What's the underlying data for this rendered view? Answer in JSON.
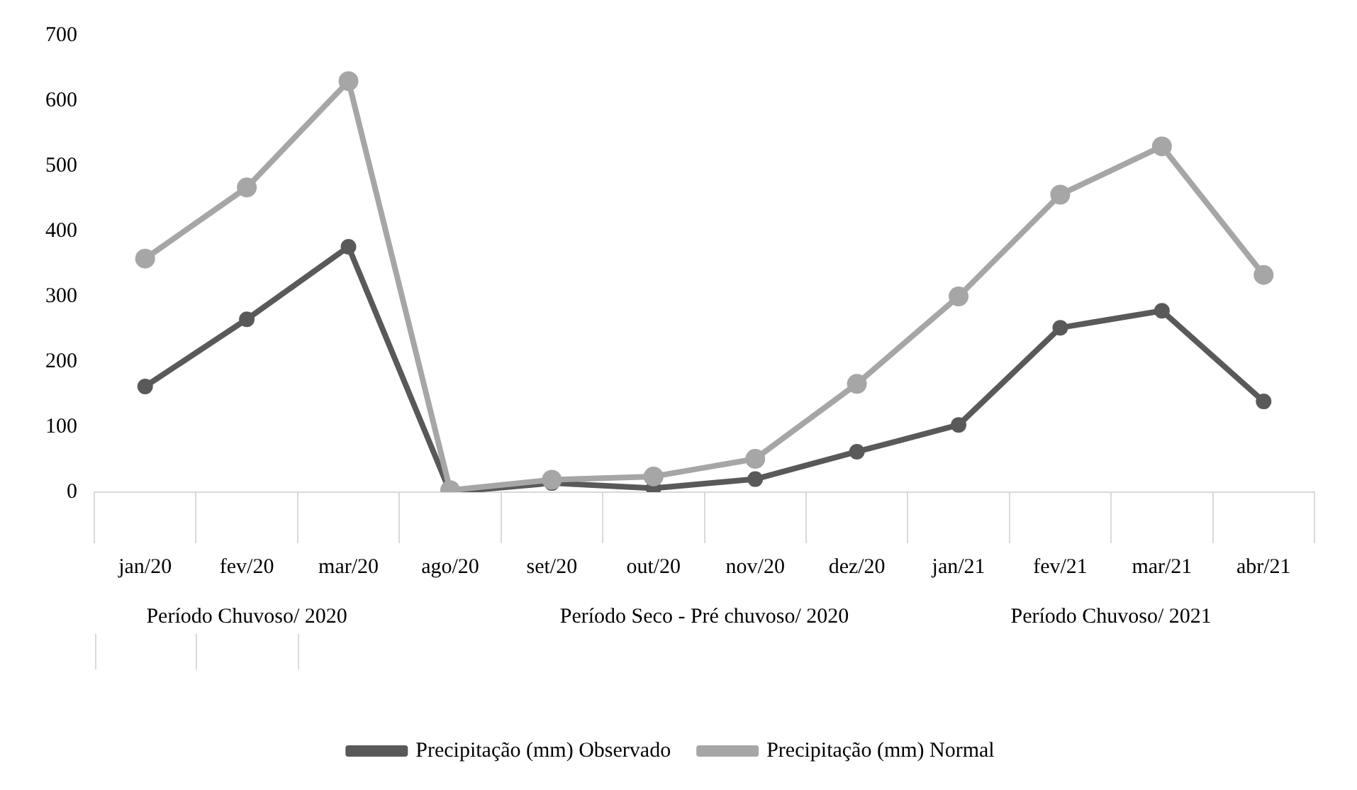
{
  "chart_data": {
    "type": "line",
    "categories": [
      "jan/20",
      "fev/20",
      "mar/20",
      "ago/20",
      "set/20",
      "out/20",
      "nov/20",
      "dez/20",
      "jan/21",
      "fev/21",
      "mar/21",
      "abr/21"
    ],
    "series": [
      {
        "name": "Precipitação (mm) Observado",
        "color": "#595959",
        "values": [
          162,
          265,
          376,
          0,
          14,
          6,
          20,
          62,
          103,
          252,
          278,
          139
        ]
      },
      {
        "name": "Precipitação (mm) Normal",
        "color": "#a6a6a6",
        "values": [
          358,
          467,
          630,
          3,
          19,
          24,
          51,
          166,
          300,
          456,
          530,
          333
        ]
      }
    ],
    "ylim": [
      0,
      700
    ],
    "yticks": [
      0,
      100,
      200,
      300,
      400,
      500,
      600,
      700
    ],
    "grid": false,
    "legend": "bottom",
    "marker": "circle",
    "line_style": "solid",
    "annotations": [
      "Período Chuvoso/ 2020",
      "Período Seco - Pré chuvoso/ 2020",
      "Período Chuvoso/ 2021"
    ]
  }
}
